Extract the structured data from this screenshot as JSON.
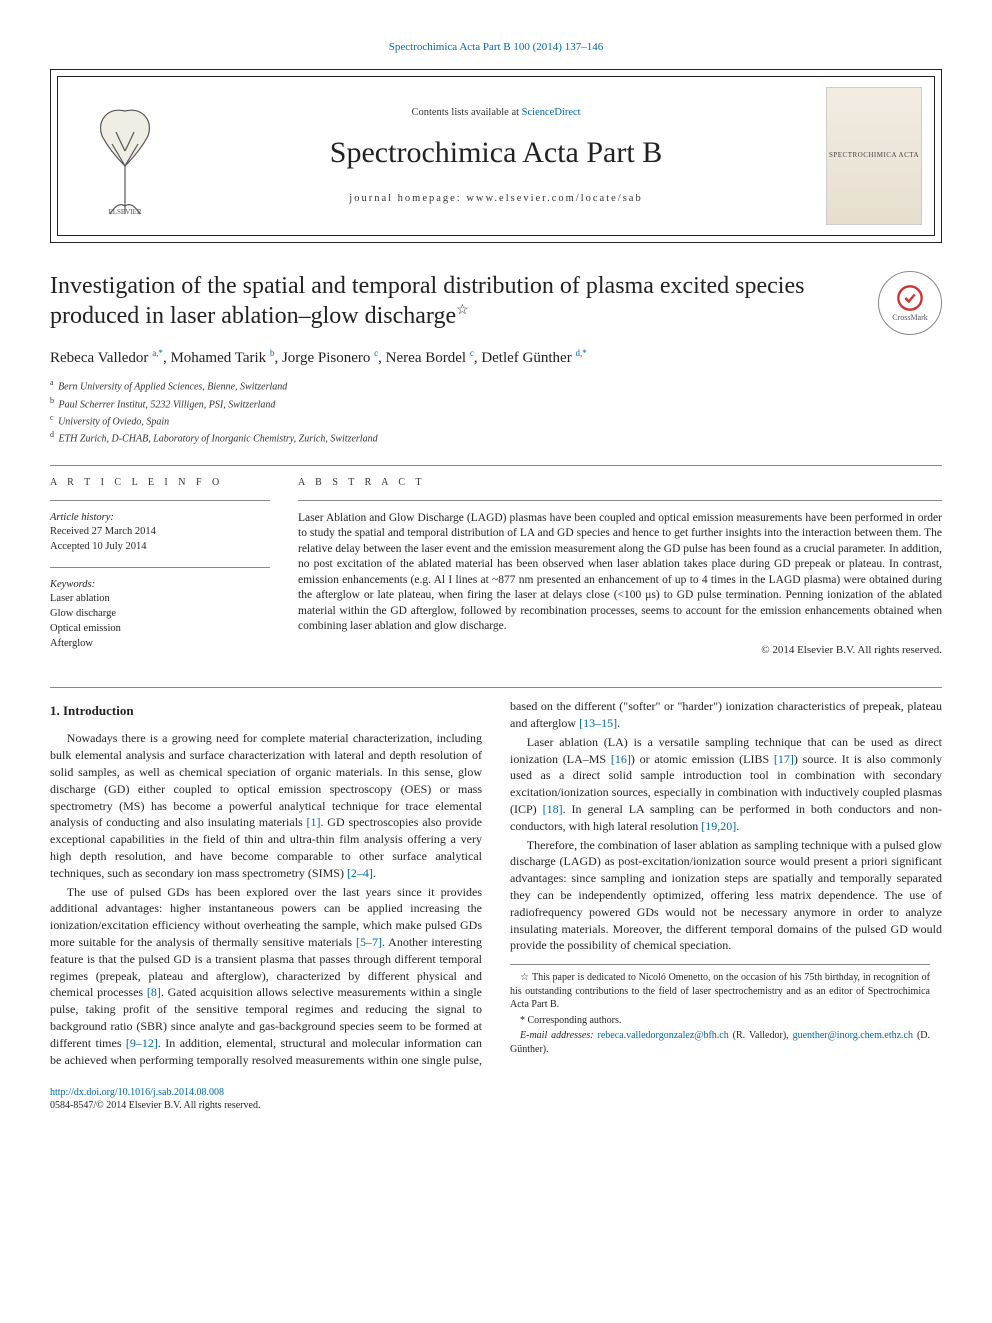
{
  "citation_line": "Spectrochimica Acta Part B 100 (2014) 137–146",
  "header": {
    "contents_prefix": "Contents lists available at ",
    "contents_link": "ScienceDirect",
    "journal_name": "Spectrochimica Acta Part B",
    "homepage_prefix": "journal homepage: ",
    "homepage_url": "www.elsevier.com/locate/sab",
    "cover_label": "SPECTROCHIMICA\nACTA"
  },
  "crossmark_label": "CrossMark",
  "title": "Investigation of the spatial and temporal distribution of plasma excited species produced in laser ablation–glow discharge",
  "title_star": "☆",
  "authors_html": "Rebeca Valledor <sup>a,*</sup>, Mohamed Tarik <sup>b</sup>, Jorge Pisonero <sup>c</sup>, Nerea Bordel <sup>c</sup>, Detlef Günther <sup>d,*</sup>",
  "affiliations": [
    {
      "key": "a",
      "text": "Bern University of Applied Sciences, Bienne, Switzerland"
    },
    {
      "key": "b",
      "text": "Paul Scherrer Institut, 5232 Villigen, PSI, Switzerland"
    },
    {
      "key": "c",
      "text": "University of Oviedo, Spain"
    },
    {
      "key": "d",
      "text": "ETH Zurich, D-CHAB, Laboratory of Inorganic Chemistry, Zurich, Switzerland"
    }
  ],
  "article_info": {
    "heading": "A R T I C L E   I N F O",
    "history_label": "Article history:",
    "received": "Received 27 March 2014",
    "accepted": "Accepted 10 July 2014",
    "keywords_label": "Keywords:",
    "keywords": [
      "Laser ablation",
      "Glow discharge",
      "Optical emission",
      "Afterglow"
    ]
  },
  "abstract": {
    "heading": "A B S T R A C T",
    "text": "Laser Ablation and Glow Discharge (LAGD) plasmas have been coupled and optical emission measurements have been performed in order to study the spatial and temporal distribution of LA and GD species and hence to get further insights into the interaction between them. The relative delay between the laser event and the emission measurement along the GD pulse has been found as a crucial parameter. In addition, no post excitation of the ablated material has been observed when laser ablation takes place during GD prepeak or plateau. In contrast, emission enhancements (e.g. Al I lines at ~877 nm presented an enhancement of up to 4 times in the LAGD plasma) were obtained during the afterglow or late plateau, when firing the laser at delays close (<100 μs) to GD pulse termination. Penning ionization of the ablated material within the GD afterglow, followed by recombination processes, seems to account for the emission enhancements obtained when combining laser ablation and glow discharge.",
    "copyright": "© 2014 Elsevier B.V. All rights reserved."
  },
  "section1_heading": "1. Introduction",
  "para1": "Nowadays there is a growing need for complete material characterization, including bulk elemental analysis and surface characterization with lateral and depth resolution of solid samples, as well as chemical speciation of organic materials. In this sense, glow discharge (GD) either coupled to optical emission spectroscopy (OES) or mass spectrometry (MS) has become a powerful analytical technique for trace elemental analysis of conducting and also insulating materials [1]. GD spectroscopies also provide exceptional capabilities in the field of thin and ultra-thin film analysis offering a very high depth resolution, and have become comparable to other surface analytical techniques, such as secondary ion mass spectrometry (SIMS) [2–4].",
  "para2": "The use of pulsed GDs has been explored over the last years since it provides additional advantages: higher instantaneous powers can be applied increasing the ionization/excitation efficiency without overheating the sample, which make pulsed GDs more suitable for the analysis of thermally sensitive materials [5–7]. Another interesting feature is that the pulsed GD is a transient plasma that passes through different temporal regimes (prepeak, plateau and afterglow), characterized by different physical and chemical processes [8]. Gated acquisition allows selective measurements within a single pulse, taking profit of the sensitive temporal regimes and reducing the signal to background ratio (SBR) since analyte and gas-background species seem to be formed at different times [9–12]. In addition, elemental, structural and molecular information can be achieved when performing temporally resolved measurements within one single pulse, based on the different (\"softer\" or \"harder\") ionization characteristics of prepeak, plateau and afterglow [13–15].",
  "para3": "Laser ablation (LA) is a versatile sampling technique that can be used as direct ionization (LA–MS [16]) or atomic emission (LIBS [17]) source. It is also commonly used as a direct solid sample introduction tool in combination with secondary excitation/ionization sources, especially in combination with inductively coupled plasmas (ICP) [18]. In general LA sampling can be performed in both conductors and non-conductors, with high lateral resolution [19,20].",
  "para4": "Therefore, the combination of laser ablation as sampling technique with a pulsed glow discharge (LAGD) as post-excitation/ionization source would present a priori significant advantages: since sampling and ionization steps are spatially and temporally separated they can be independently optimized, offering less matrix dependence. The use of radiofrequency powered GDs would not be necessary anymore in order to analyze insulating materials. Moreover, the different temporal domains of the pulsed GD would provide the possibility of chemical speciation.",
  "footnotes": {
    "dedication_star": "☆",
    "dedication": "This paper is dedicated to Nicoló Omenetto, on the occasion of his 75th birthday, in recognition of his outstanding contributions to the field of laser spectrochemistry and as an editor of Spectrochimica Acta Part B.",
    "corr_star": "*",
    "corr_label": "Corresponding authors.",
    "email_label": "E-mail addresses:",
    "email1": "rebeca.valledorgonzalez@bfh.ch",
    "email1_who": "(R. Valledor),",
    "email2": "guenther@inorg.chem.ethz.ch",
    "email2_who": "(D. Günther)."
  },
  "doi": {
    "url": "http://dx.doi.org/10.1016/j.sab.2014.08.008",
    "issn_line": "0584-8547/© 2014 Elsevier B.V. All rights reserved."
  },
  "colors": {
    "link": "#0066aa",
    "text": "#231f20",
    "rule": "#888888",
    "background": "#ffffff"
  }
}
